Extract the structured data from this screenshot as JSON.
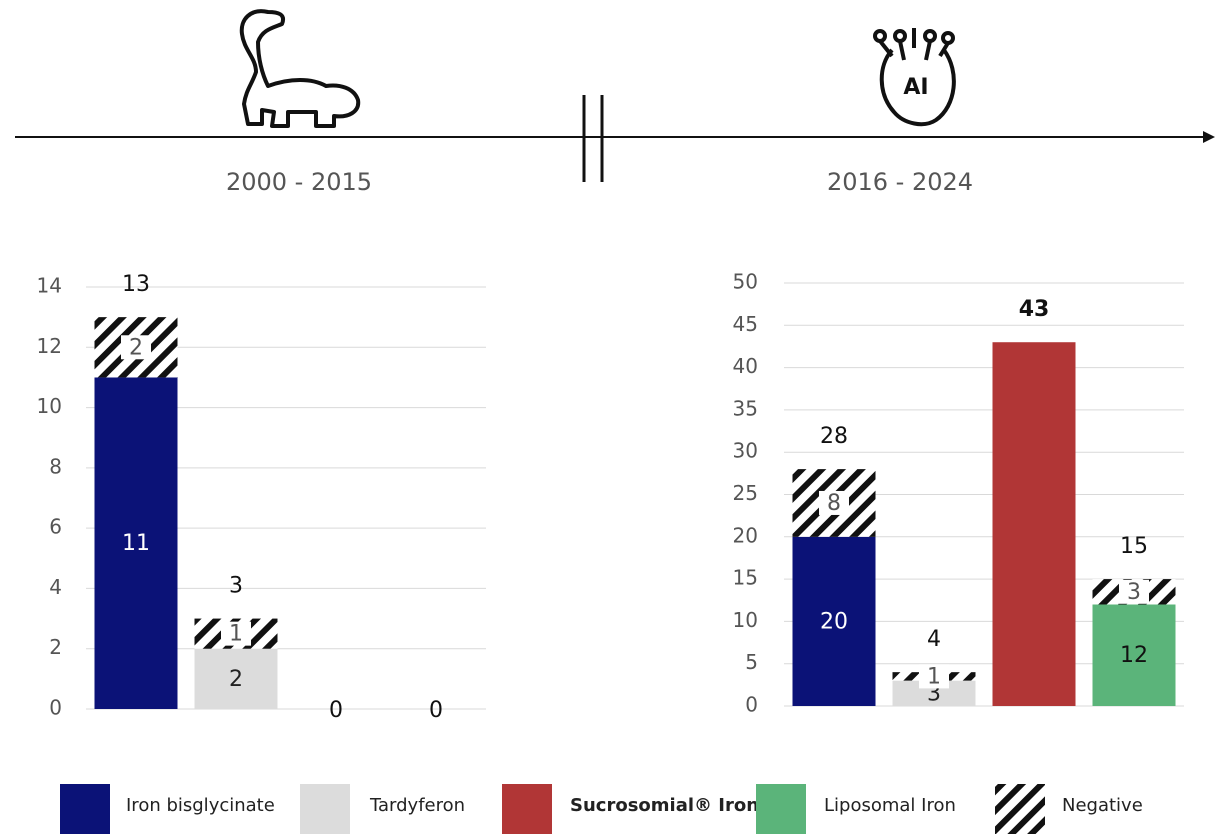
{
  "timeline": {
    "ai_icon_text": "AI"
  },
  "chart_data": [
    {
      "type": "stacked-bar",
      "title": "2000 - 2015",
      "categories": [
        null,
        null,
        null,
        null
      ],
      "ylim": [
        0,
        14
      ],
      "yticks": [
        0,
        2,
        4,
        6,
        8,
        10,
        12,
        14
      ],
      "grid": true,
      "series": [
        {
          "name": "Iron bisglycinate",
          "color": "#0b1277",
          "label_color": "#ffffff",
          "values": [
            11,
            null,
            null,
            null
          ]
        },
        {
          "name": "Tardyferon",
          "color": "#dcdcdc",
          "label_color": "#222222",
          "values": [
            null,
            2,
            null,
            null
          ]
        },
        {
          "name": "Sucrosomial® Iron",
          "color": "#b13636",
          "label_color": "#ffffff",
          "bold": true,
          "values": [
            null,
            null,
            null,
            null
          ]
        },
        {
          "name": "Liposomal Iron",
          "color": "#5bb47a",
          "label_color": "#111111",
          "values": [
            null,
            null,
            null,
            null
          ]
        },
        {
          "name": "Negative",
          "color": "hatch",
          "label_color": "#555555",
          "values": [
            2,
            1,
            null,
            null
          ]
        }
      ],
      "totals": [
        13,
        3,
        0,
        0
      ]
    },
    {
      "type": "stacked-bar",
      "title": "2016 - 2024",
      "categories": [
        null,
        null,
        null,
        null
      ],
      "ylim": [
        0,
        50
      ],
      "yticks": [
        0,
        5,
        10,
        15,
        20,
        25,
        30,
        35,
        40,
        45,
        50
      ],
      "grid": true,
      "series": [
        {
          "name": "Iron bisglycinate",
          "color": "#0b1277",
          "label_color": "#ffffff",
          "values": [
            20,
            null,
            null,
            null
          ]
        },
        {
          "name": "Tardyferon",
          "color": "#dcdcdc",
          "label_color": "#222222",
          "values": [
            null,
            3,
            null,
            null
          ]
        },
        {
          "name": "Sucrosomial® Iron",
          "color": "#b13636",
          "label_color": "#ffffff",
          "bold": true,
          "values": [
            null,
            null,
            43,
            null
          ]
        },
        {
          "name": "Liposomal Iron",
          "color": "#5bb47a",
          "label_color": "#111111",
          "values": [
            null,
            null,
            null,
            12
          ]
        },
        {
          "name": "Negative",
          "color": "hatch",
          "label_color": "#555555",
          "values": [
            8,
            1,
            null,
            3
          ]
        }
      ],
      "totals": [
        28,
        4,
        43,
        15
      ]
    }
  ]
}
